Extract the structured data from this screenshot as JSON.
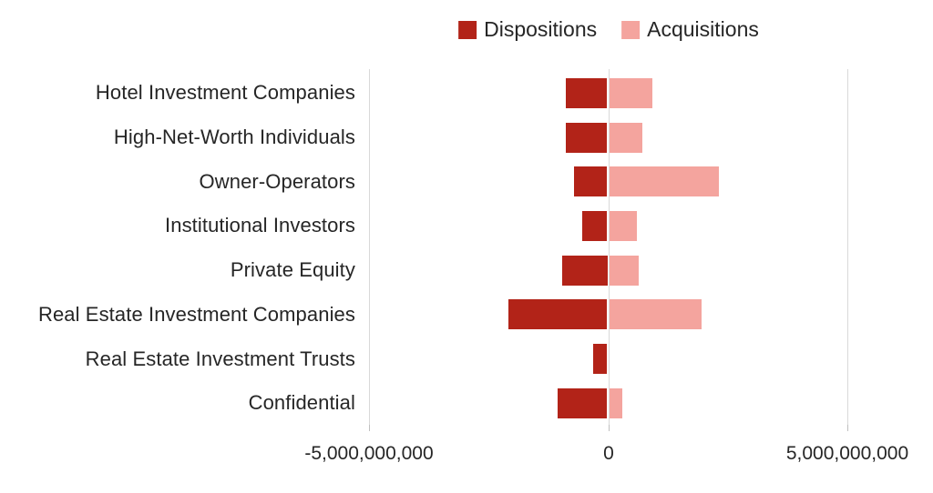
{
  "chart_data": {
    "type": "bar",
    "orientation": "horizontal-diverging",
    "title": "",
    "categories": [
      "Hotel Investment Companies",
      "High-Net-Worth Individuals",
      "Owner-Operators",
      "Institutional Investors",
      "Private Equity",
      "Real Estate Investment Companies",
      "Real Estate Investment Trusts",
      "Confidential"
    ],
    "series": [
      {
        "name": "Dispositions",
        "color": "#b22318",
        "values": [
          -860000000,
          -860000000,
          -690000000,
          -530000000,
          -950000000,
          -2060000000,
          -290000000,
          -1030000000
        ]
      },
      {
        "name": "Acquisitions",
        "color": "#f4a49e",
        "values": [
          910000000,
          700000000,
          2300000000,
          590000000,
          610000000,
          1940000000,
          0,
          270000000
        ]
      }
    ],
    "xlim": [
      -5000000000,
      5000000000
    ],
    "ticks": [
      -5000000000,
      0,
      5000000000
    ],
    "tick_labels": [
      "-5,000,000,000",
      "0",
      "5,000,000,000"
    ],
    "legend_position": "top",
    "grid": "vertical",
    "gridline_color": "#d9d9d9",
    "tick_color": "#bfbfbf",
    "text_color": "#262626",
    "background_color": "#ffffff"
  }
}
